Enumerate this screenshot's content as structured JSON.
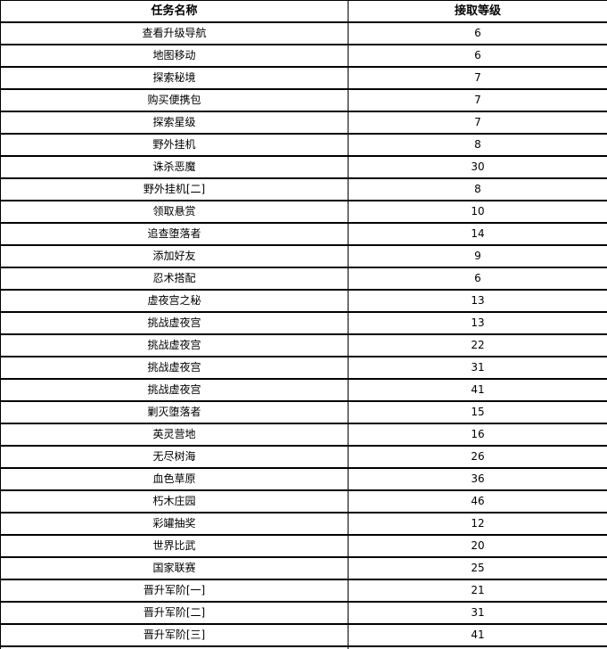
{
  "page": {
    "background": "#ffffff",
    "border_color": "#000000",
    "text_color": "#000000"
  },
  "table": {
    "headers": [
      "任务名称",
      "接取等级"
    ],
    "rows": [
      {
        "task": "查看升级导航",
        "level": "6"
      },
      {
        "task": "地图移动",
        "level": "6"
      },
      {
        "task": "探索秘境",
        "level": "7"
      },
      {
        "task": "购买便携包",
        "level": "7"
      },
      {
        "task": "探索星级",
        "level": "7"
      },
      {
        "task": "野外挂机",
        "level": "8"
      },
      {
        "task": "诛杀恶魔",
        "level": "30"
      },
      {
        "task": "野外挂机[二]",
        "level": "8"
      },
      {
        "task": "领取悬赏",
        "level": "10"
      },
      {
        "task": "追查堕落者",
        "level": "14"
      },
      {
        "task": "添加好友",
        "level": "9"
      },
      {
        "task": "忍术搭配",
        "level": "6"
      },
      {
        "task": "虚夜宫之秘",
        "level": "13"
      },
      {
        "task": "挑战虚夜宫",
        "level": "13"
      },
      {
        "task": "挑战虚夜宫",
        "level": "22"
      },
      {
        "task": "挑战虚夜宫",
        "level": "31"
      },
      {
        "task": "挑战虚夜宫",
        "level": "41"
      },
      {
        "task": "剿灭堕落者",
        "level": "15"
      },
      {
        "task": "英灵营地",
        "level": "16"
      },
      {
        "task": "无尽树海",
        "level": "26"
      },
      {
        "task": "血色草原",
        "level": "36"
      },
      {
        "task": "朽木庄园",
        "level": "46"
      },
      {
        "task": "彩罐抽奖",
        "level": "12"
      },
      {
        "task": "世界比武",
        "level": "20"
      },
      {
        "task": "国家联赛",
        "level": "25"
      },
      {
        "task": "晋升军阶[一]",
        "level": "21"
      },
      {
        "task": "晋升军阶[二]",
        "level": "31"
      },
      {
        "task": "晋升军阶[三]",
        "level": "41"
      }
    ]
  }
}
